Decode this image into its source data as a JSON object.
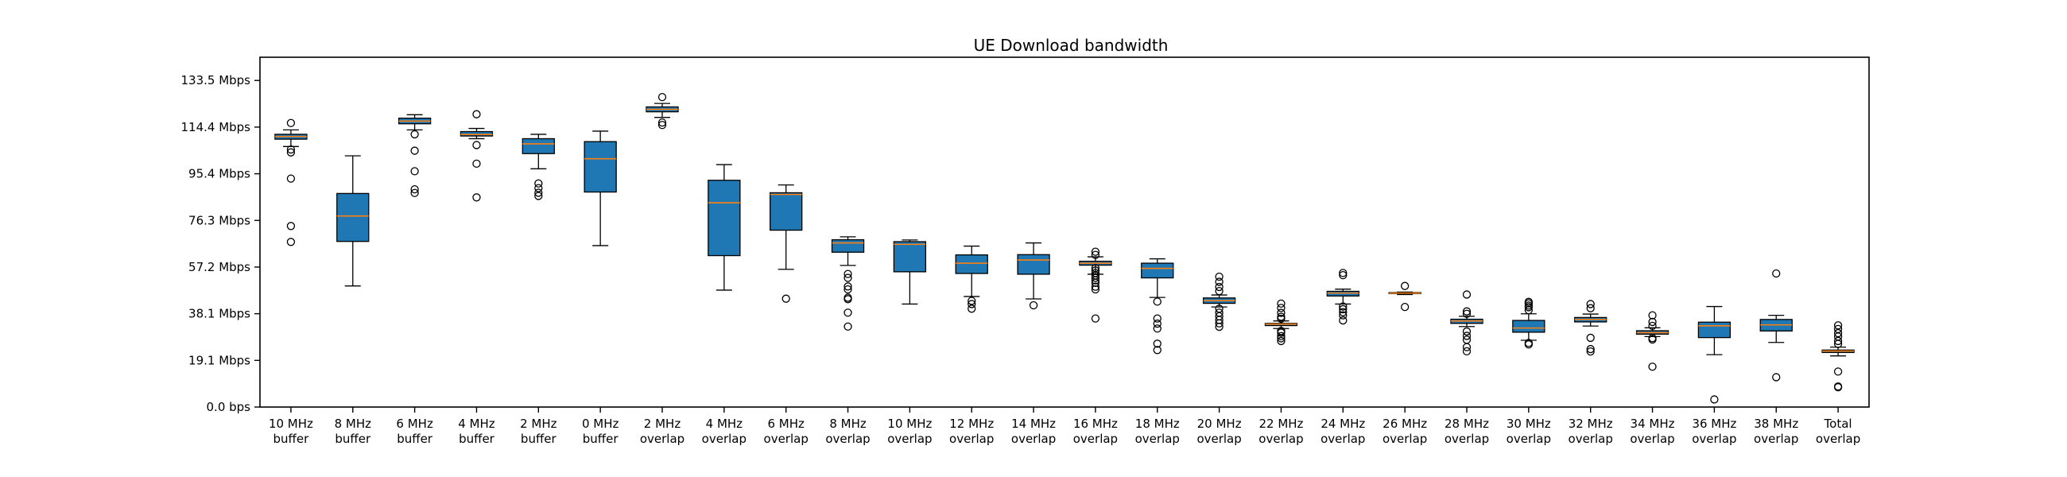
{
  "chart_data": {
    "type": "box",
    "title": "UE Download bandwidth",
    "xlabel": "",
    "ylabel": "",
    "ylim": [
      0,
      143
    ],
    "yticks": [
      0,
      19.07,
      38.15,
      57.22,
      76.29,
      95.37,
      114.44,
      133.51
    ],
    "ytick_labels": [
      "0.0 bps",
      "19.1 Mbps",
      "38.1 Mbps",
      "57.2 Mbps",
      "76.3 Mbps",
      "95.4 Mbps",
      "114.4 Mbps",
      "133.5 Mbps"
    ],
    "grid": false,
    "legend": "none",
    "colors": {
      "box_fill": "#1f77b4",
      "median": "#ff7f0e",
      "edge": "#000000"
    },
    "categories": [
      [
        "10 MHz",
        "buffer"
      ],
      [
        "8 MHz",
        "buffer"
      ],
      [
        "6 MHz",
        "buffer"
      ],
      [
        "4 MHz",
        "buffer"
      ],
      [
        "2 MHz",
        "buffer"
      ],
      [
        "0 MHz",
        "buffer"
      ],
      [
        "2 MHz",
        "overlap"
      ],
      [
        "4 MHz",
        "overlap"
      ],
      [
        "6 MHz",
        "overlap"
      ],
      [
        "8 MHz",
        "overlap"
      ],
      [
        "10 MHz",
        "overlap"
      ],
      [
        "12 MHz",
        "overlap"
      ],
      [
        "14 MHz",
        "overlap"
      ],
      [
        "16 MHz",
        "overlap"
      ],
      [
        "18 MHz",
        "overlap"
      ],
      [
        "20 MHz",
        "overlap"
      ],
      [
        "22 MHz",
        "overlap"
      ],
      [
        "24 MHz",
        "overlap"
      ],
      [
        "26 MHz",
        "overlap"
      ],
      [
        "28 MHz",
        "overlap"
      ],
      [
        "30 MHz",
        "overlap"
      ],
      [
        "32 MHz",
        "overlap"
      ],
      [
        "34 MHz",
        "overlap"
      ],
      [
        "36 MHz",
        "overlap"
      ],
      [
        "38 MHz",
        "overlap"
      ],
      [
        "Total",
        "overlap"
      ]
    ],
    "boxes": [
      {
        "whislo": 106.5,
        "q1": 109.5,
        "med": 110.6,
        "q3": 111.5,
        "whishi": 113.3,
        "fliers": [
          116.1,
          105.3,
          104.1,
          93.4,
          74.0,
          67.5
        ]
      },
      {
        "whislo": 49.5,
        "q1": 67.7,
        "med": 78.1,
        "q3": 87.3,
        "whishi": 102.7,
        "fliers": []
      },
      {
        "whislo": 113.3,
        "q1": 115.8,
        "med": 116.9,
        "q3": 118.1,
        "whishi": 119.5,
        "fliers": [
          111.5,
          104.8,
          96.4,
          89.0,
          87.5
        ]
      },
      {
        "whislo": 109.7,
        "q1": 110.8,
        "med": 111.4,
        "q3": 112.6,
        "whishi": 113.9,
        "fliers": [
          119.7,
          107.1,
          99.5,
          85.7
        ]
      },
      {
        "whislo": 97.4,
        "q1": 103.6,
        "med": 107.6,
        "q3": 109.7,
        "whishi": 111.5,
        "fliers": [
          91.4,
          89.5,
          87.6,
          86.3
        ]
      },
      {
        "whislo": 66.0,
        "q1": 87.9,
        "med": 101.5,
        "q3": 108.5,
        "whishi": 112.8,
        "fliers": []
      },
      {
        "whislo": 118.4,
        "q1": 120.7,
        "med": 121.7,
        "q3": 122.7,
        "whishi": 124.1,
        "fliers": [
          126.7,
          116.3,
          115.3
        ]
      },
      {
        "whislo": 47.8,
        "q1": 61.9,
        "med": 83.5,
        "q3": 92.7,
        "whishi": 99.1,
        "fliers": []
      },
      {
        "whislo": 56.3,
        "q1": 72.3,
        "med": 86.9,
        "q3": 87.6,
        "whishi": 90.8,
        "fliers": [
          44.3
        ]
      },
      {
        "whislo": 57.9,
        "q1": 63.3,
        "med": 67.1,
        "q3": 68.4,
        "whishi": 69.6,
        "fliers": [
          54.4,
          52.8,
          49.3,
          48.1,
          44.7,
          44.1,
          38.6,
          32.9
        ]
      },
      {
        "whislo": 42.1,
        "q1": 55.3,
        "med": 66.5,
        "q3": 67.6,
        "whishi": 68.3,
        "fliers": []
      },
      {
        "whislo": 45.2,
        "q1": 54.6,
        "med": 58.8,
        "q3": 62.2,
        "whishi": 65.8,
        "fliers": [
          43.4,
          42.1,
          40.2
        ]
      },
      {
        "whislo": 44.2,
        "q1": 54.3,
        "med": 60.1,
        "q3": 62.3,
        "whishi": 67.1,
        "fliers": [
          41.6
        ]
      },
      {
        "whislo": 54.3,
        "q1": 58.0,
        "med": 58.8,
        "q3": 59.6,
        "whishi": 61.4,
        "fliers": [
          63.5,
          62.2,
          56.8,
          55.8,
          54.8,
          53.8,
          52.8,
          51.8,
          50.8,
          49.2,
          48.1,
          36.2
        ]
      },
      {
        "whislo": 44.8,
        "q1": 52.8,
        "med": 56.7,
        "q3": 58.8,
        "whishi": 60.6,
        "fliers": [
          43.1,
          36.2,
          34.1,
          32.1,
          25.9,
          23.3
        ]
      },
      {
        "whislo": 40.9,
        "q1": 42.4,
        "med": 43.5,
        "q3": 44.6,
        "whishi": 45.8,
        "fliers": [
          53.3,
          51.2,
          49.1,
          47.4,
          40.2,
          38.6,
          37.1,
          35.6,
          34.2,
          32.8
        ]
      },
      {
        "whislo": 32.1,
        "q1": 33.3,
        "med": 33.9,
        "q3": 34.2,
        "whishi": 35.2,
        "fliers": [
          42.3,
          40.5,
          38.5,
          36.9,
          36.1,
          31.1,
          30.4,
          29.0,
          28.1,
          27.0
        ]
      },
      {
        "whislo": 42.1,
        "q1": 45.4,
        "med": 46.6,
        "q3": 47.3,
        "whishi": 48.2,
        "fliers": [
          54.8,
          53.9,
          41.1,
          40.0,
          38.8,
          37.5,
          35.4
        ]
      },
      {
        "whislo": 46.0,
        "q1": 46.4,
        "med": 46.6,
        "q3": 46.8,
        "whishi": 47.0,
        "fliers": [
          49.5,
          40.9
        ]
      },
      {
        "whislo": 32.9,
        "q1": 34.2,
        "med": 35.2,
        "q3": 35.9,
        "whishi": 37.1,
        "fliers": [
          46.0,
          39.1,
          38.1,
          30.9,
          29.1,
          27.5,
          24.5,
          22.8
        ]
      },
      {
        "whislo": 27.3,
        "q1": 30.6,
        "med": 32.3,
        "q3": 35.4,
        "whishi": 38.1,
        "fliers": [
          43.0,
          42.4,
          41.5,
          40.8,
          39.6,
          26.2,
          25.6
        ]
      },
      {
        "whislo": 33.1,
        "q1": 34.8,
        "med": 35.8,
        "q3": 36.6,
        "whishi": 38.0,
        "fliers": [
          42.1,
          40.4,
          28.3,
          23.7,
          22.7
        ]
      },
      {
        "whislo": 28.8,
        "q1": 29.8,
        "med": 30.4,
        "q3": 31.2,
        "whishi": 32.4,
        "fliers": [
          37.5,
          34.8,
          33.2,
          28.2,
          27.6,
          16.5
        ]
      },
      {
        "whislo": 21.4,
        "q1": 28.4,
        "med": 33.2,
        "q3": 34.7,
        "whishi": 41.1,
        "fliers": [
          3.1
        ]
      },
      {
        "whislo": 26.4,
        "q1": 31.1,
        "med": 33.6,
        "q3": 35.8,
        "whishi": 37.5,
        "fliers": [
          54.6,
          12.2
        ]
      },
      {
        "whislo": 20.9,
        "q1": 22.3,
        "med": 22.9,
        "q3": 23.3,
        "whishi": 24.5,
        "fliers": [
          33.4,
          31.9,
          30.2,
          28.8,
          27.0,
          25.8,
          14.5,
          8.4,
          8.1
        ]
      }
    ]
  }
}
